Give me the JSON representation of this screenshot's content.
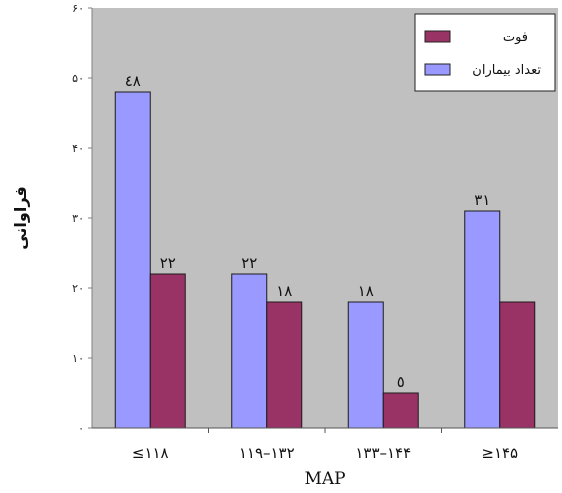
{
  "chart_data": {
    "type": "bar",
    "categories": [
      "≤۱۱۸",
      "۱۱۹–۱۳۲",
      "۱۳۳–۱۴۴",
      "≥۱۴۵"
    ],
    "series": [
      {
        "name": "تعداد بیماران",
        "color": "#9999ff",
        "values": [
          48,
          22,
          18,
          31
        ],
        "labels": [
          "٤٨",
          "٢٢",
          "١٨",
          "٣١"
        ]
      },
      {
        "name": "فوت",
        "color": "#993366",
        "values": [
          22,
          18,
          5,
          18
        ],
        "labels": [
          "٢٢",
          "١٨",
          "٥",
          ""
        ]
      }
    ],
    "xlabel": "MAP",
    "ylabel": "فراوانی",
    "ylim": [
      0,
      60
    ],
    "yticks": [
      0,
      10,
      20,
      30,
      40,
      50,
      60
    ],
    "ytick_labels": [
      "۰",
      "۱۰",
      "۲۰",
      "۳۰",
      "۴۰",
      "۵۰",
      "۶۰"
    ],
    "plot_background": "#c0c0c0",
    "grid": false,
    "legend_position": "top-right"
  }
}
